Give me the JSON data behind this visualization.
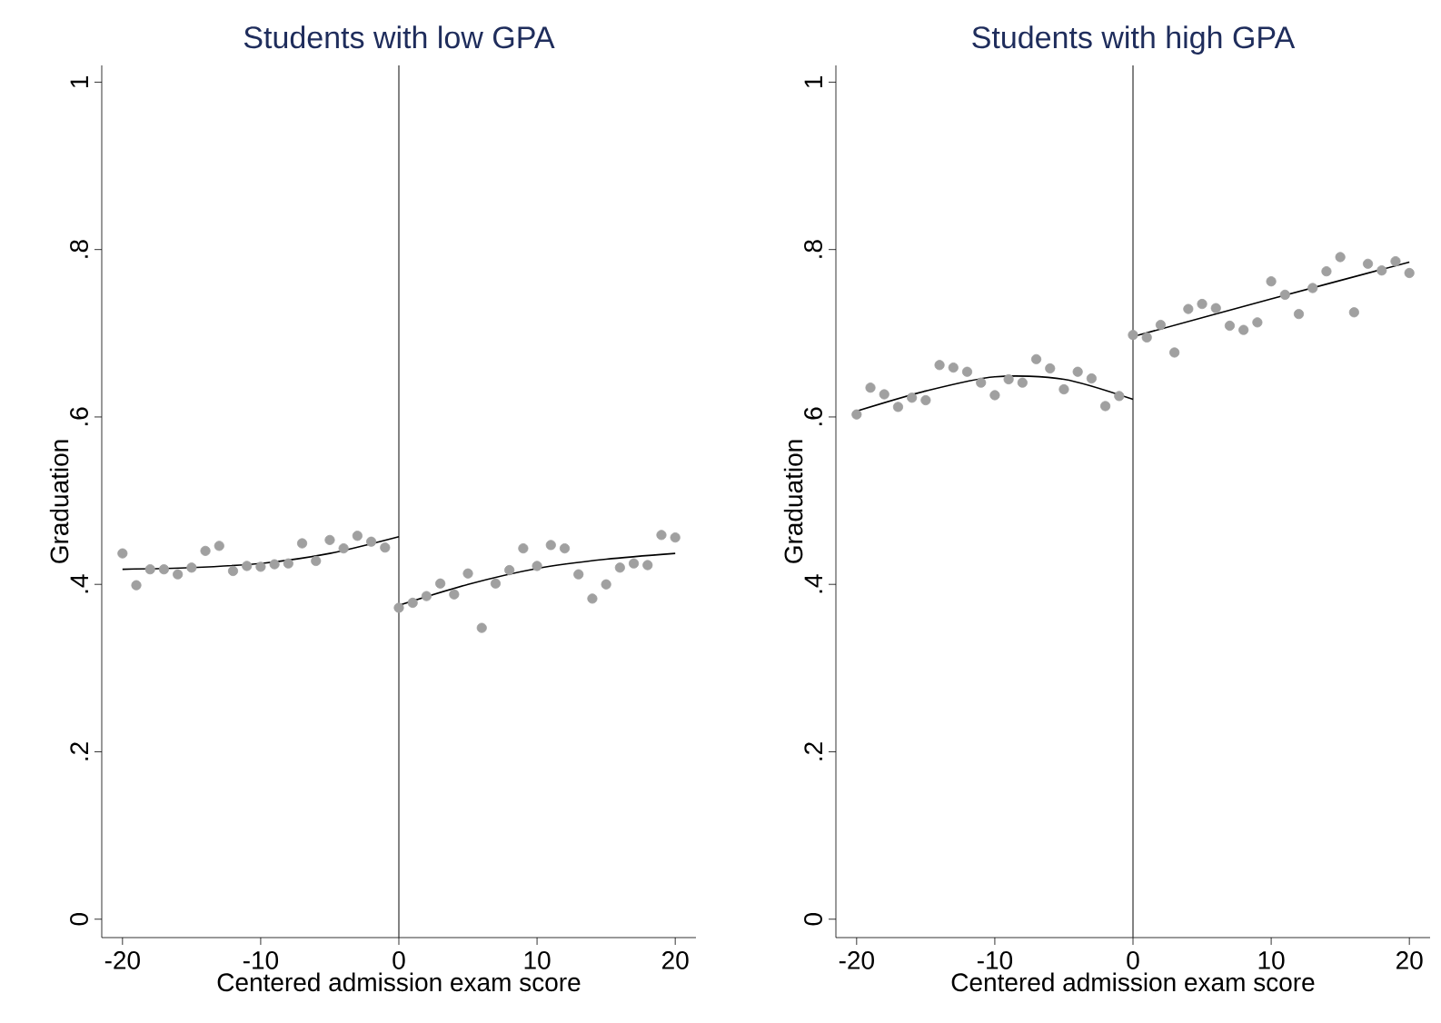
{
  "chart_data": [
    {
      "type": "scatter",
      "title": "Students with low GPA",
      "xlabel": "Centered admission exam score",
      "ylabel": "Graduation",
      "xlim": [
        -21.5,
        21.5
      ],
      "ylim": [
        -0.022,
        1.02
      ],
      "xticks": [
        -20,
        -10,
        0,
        10,
        20
      ],
      "yticks": [
        {
          "value": 0,
          "label": "0"
        },
        {
          "value": 0.2,
          "label": ".2"
        },
        {
          "value": 0.4,
          "label": ".4"
        },
        {
          "value": 0.6,
          "label": ".6"
        },
        {
          "value": 0.8,
          "label": ".8"
        },
        {
          "value": 1,
          "label": "1"
        }
      ],
      "ref_lines": [
        {
          "axis": "x",
          "value": 0,
          "color": "#303030"
        }
      ],
      "series": [
        {
          "type": "scatter",
          "marker": "circle",
          "color": "#a0a0a0",
          "x": [
            -20,
            -19,
            -18,
            -17,
            -16,
            -15,
            -14,
            -13,
            -12,
            -11,
            -10,
            -9,
            -8,
            -7,
            -6,
            -5,
            -4,
            -3,
            -2,
            -1,
            0,
            1,
            2,
            3,
            4,
            5,
            6,
            7,
            8,
            9,
            10,
            11,
            12,
            13,
            14,
            15,
            16,
            17,
            18,
            19,
            20
          ],
          "values": [
            0.437,
            0.399,
            0.418,
            0.418,
            0.412,
            0.42,
            0.44,
            0.446,
            0.416,
            0.422,
            0.421,
            0.424,
            0.425,
            0.449,
            0.428,
            0.453,
            0.443,
            0.458,
            0.451,
            0.444,
            0.372,
            0.378,
            0.386,
            0.401,
            0.388,
            0.413,
            0.348,
            0.401,
            0.417,
            0.443,
            0.422,
            0.447,
            0.443,
            0.412,
            0.383,
            0.4,
            0.42,
            0.425,
            0.423,
            0.459,
            0.456
          ]
        },
        {
          "type": "line",
          "marker": "none",
          "color": "#000000",
          "x": [
            -20,
            -15,
            -10,
            -5,
            0
          ],
          "values": [
            0.418,
            0.42,
            0.425,
            0.437,
            0.457
          ]
        },
        {
          "type": "line",
          "marker": "none",
          "color": "#000000",
          "x": [
            0,
            5,
            10,
            15,
            20
          ],
          "values": [
            0.375,
            0.4,
            0.419,
            0.43,
            0.437
          ]
        }
      ]
    },
    {
      "type": "scatter",
      "title": "Students with high GPA",
      "xlabel": "Centered admission exam score",
      "ylabel": "Graduation",
      "xlim": [
        -21.5,
        21.5
      ],
      "ylim": [
        -0.022,
        1.02
      ],
      "xticks": [
        -20,
        -10,
        0,
        10,
        20
      ],
      "yticks": [
        {
          "value": 0,
          "label": "0"
        },
        {
          "value": 0.2,
          "label": ".2"
        },
        {
          "value": 0.4,
          "label": ".4"
        },
        {
          "value": 0.6,
          "label": ".6"
        },
        {
          "value": 0.8,
          "label": ".8"
        },
        {
          "value": 1,
          "label": "1"
        }
      ],
      "ref_lines": [
        {
          "axis": "x",
          "value": 0,
          "color": "#303030"
        }
      ],
      "series": [
        {
          "type": "scatter",
          "marker": "circle",
          "color": "#a0a0a0",
          "x": [
            -20,
            -19,
            -18,
            -17,
            -16,
            -15,
            -14,
            -13,
            -12,
            -11,
            -10,
            -9,
            -8,
            -7,
            -6,
            -5,
            -4,
            -3,
            -2,
            -1,
            0,
            1,
            2,
            3,
            4,
            5,
            6,
            7,
            8,
            9,
            10,
            11,
            12,
            13,
            14,
            15,
            16,
            17,
            18,
            19,
            20
          ],
          "values": [
            0.603,
            0.635,
            0.627,
            0.612,
            0.623,
            0.62,
            0.662,
            0.659,
            0.654,
            0.641,
            0.626,
            0.645,
            0.641,
            0.669,
            0.658,
            0.633,
            0.654,
            0.646,
            0.613,
            0.625,
            0.698,
            0.695,
            0.71,
            0.677,
            0.729,
            0.735,
            0.73,
            0.709,
            0.704,
            0.713,
            0.762,
            0.746,
            0.723,
            0.754,
            0.774,
            0.791,
            0.725,
            0.783,
            0.775,
            0.786,
            0.772
          ]
        },
        {
          "type": "line",
          "marker": "none",
          "color": "#000000",
          "x": [
            -20,
            -15,
            -10,
            -5,
            0
          ],
          "values": [
            0.607,
            0.631,
            0.648,
            0.645,
            0.621
          ]
        },
        {
          "type": "line",
          "marker": "none",
          "color": "#000000",
          "x": [
            0,
            10,
            20
          ],
          "values": [
            0.696,
            0.741,
            0.785
          ]
        }
      ]
    }
  ]
}
